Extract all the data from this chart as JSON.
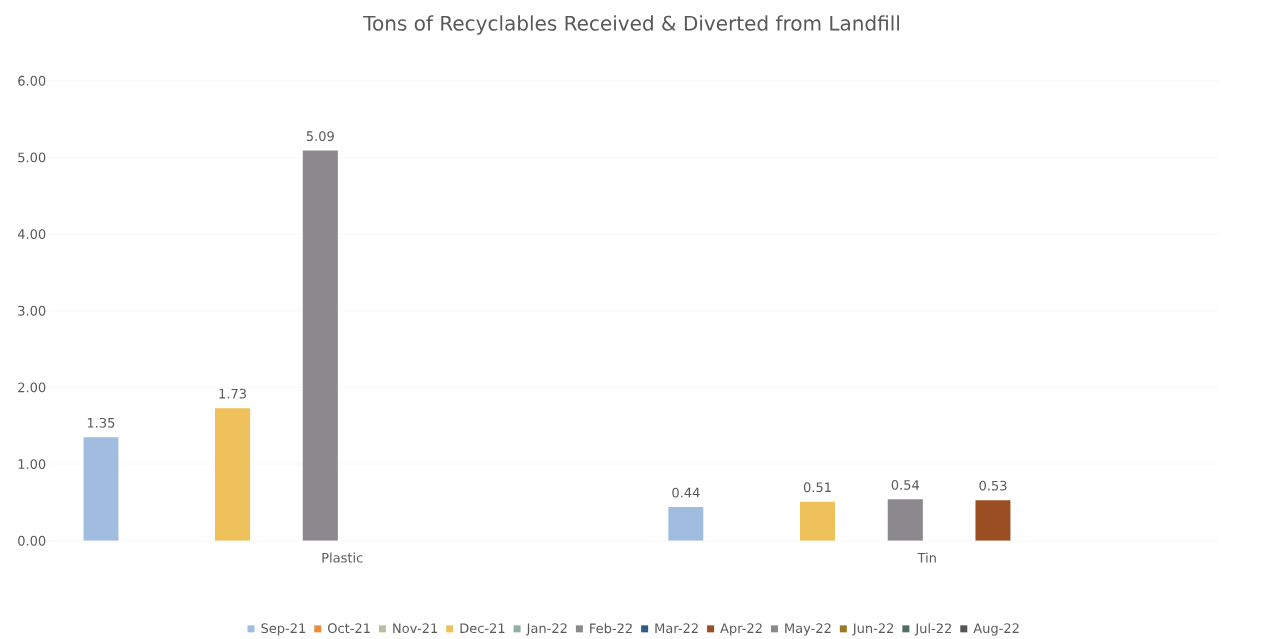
{
  "chart_data": {
    "type": "bar",
    "title": "Tons of Recyclables Received & Diverted from Landfill",
    "categories": [
      "Plastic",
      "Tin"
    ],
    "series": [
      {
        "name": "Sep-21",
        "color": "#a0bde0",
        "values": [
          1.35,
          0.44
        ]
      },
      {
        "name": "Oct-21",
        "color": "#ee8a3c",
        "values": [
          null,
          null
        ]
      },
      {
        "name": "Nov-21",
        "color": "#b7bfa0",
        "values": [
          null,
          null
        ]
      },
      {
        "name": "Dec-21",
        "color": "#efc15a",
        "values": [
          1.73,
          0.51
        ]
      },
      {
        "name": "Jan-22",
        "color": "#8fb1a3",
        "values": [
          null,
          null
        ]
      },
      {
        "name": "Feb-22",
        "color": "#8c898e",
        "values": [
          5.09,
          0.54
        ]
      },
      {
        "name": "Mar-22",
        "color": "#2f5a8c",
        "values": [
          null,
          null
        ]
      },
      {
        "name": "Apr-22",
        "color": "#9a4e22",
        "values": [
          null,
          0.53
        ]
      },
      {
        "name": "May-22",
        "color": "#8a8a8a",
        "values": [
          null,
          null
        ]
      },
      {
        "name": "Jun-22",
        "color": "#9a7a25",
        "values": [
          null,
          null
        ]
      },
      {
        "name": "Jul-22",
        "color": "#4f6e64",
        "values": [
          null,
          null
        ]
      },
      {
        "name": "Aug-22",
        "color": "#555555",
        "values": [
          null,
          null
        ]
      }
    ],
    "ylim": [
      0,
      6
    ],
    "yticks": [
      {
        "value": 0,
        "label": "0.00"
      },
      {
        "value": 1,
        "label": "1.00"
      },
      {
        "value": 2,
        "label": "2.00"
      },
      {
        "value": 3,
        "label": "3.00"
      },
      {
        "value": 4,
        "label": "4.00"
      },
      {
        "value": 5,
        "label": "5.00"
      },
      {
        "value": 6,
        "label": "6.00"
      }
    ],
    "grid": "y",
    "legend": "bottom",
    "data_labels": true
  }
}
